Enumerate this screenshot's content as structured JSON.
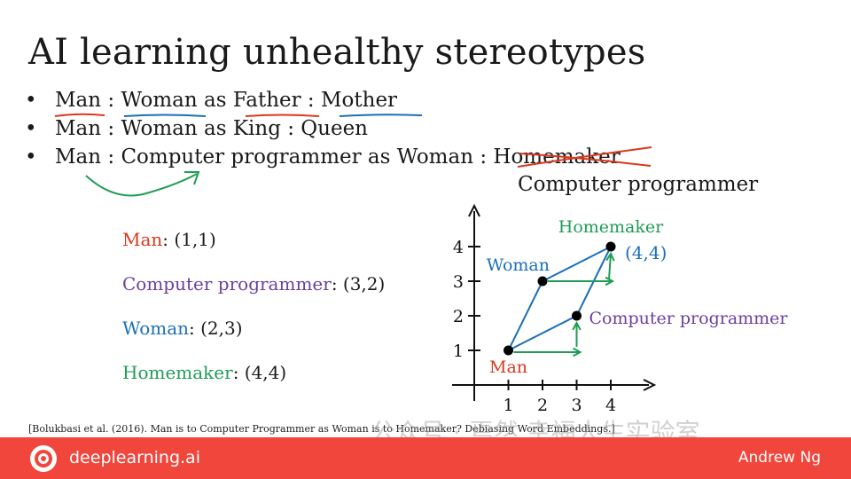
{
  "title": "AI learning unhealthy stereotypes",
  "bullets": [
    {
      "symbol": "•",
      "text": "Man : Woman as Father : Mother"
    },
    {
      "symbol": "•",
      "text": "Man : Woman as King : Queen"
    },
    {
      "symbol": "•",
      "text": "Man : Computer programmer as Woman : Homemaker"
    }
  ],
  "answer": "Computer programmer",
  "legend": [
    {
      "word": "Man",
      "coords": ": (1,1)",
      "color": "#d9381e"
    },
    {
      "word": "Computer programmer",
      "coords": ": (3,2)",
      "color": "#6b3fa0"
    },
    {
      "word": "Woman",
      "coords": ": (2,3)",
      "color": "#1c6fb8"
    },
    {
      "word": "Homemaker",
      "coords": ": (4,4)",
      "color": "#1f9d55"
    }
  ],
  "chart_data": {
    "type": "scatter",
    "x_ticks": [
      "1",
      "2",
      "3",
      "4"
    ],
    "y_ticks": [
      "1",
      "2",
      "3",
      "4"
    ],
    "xlim": [
      0,
      4.9
    ],
    "ylim": [
      0,
      5.1
    ],
    "points": [
      {
        "label": "Man",
        "x": 1,
        "y": 1,
        "color": "#d9381e"
      },
      {
        "label": "Woman",
        "x": 2,
        "y": 3,
        "color": "#1c6fb8"
      },
      {
        "label": "Computer programmer",
        "x": 3,
        "y": 2,
        "color": "#6b3fa0"
      },
      {
        "label": "Homemaker",
        "x": 4,
        "y": 4,
        "color": "#1f9d55"
      }
    ],
    "annotation": "(4,4)"
  },
  "citation": "[Bolukbasi et al. (2016). Man is to Computer Programmer as Woman is to Homemaker? Debiasing Word Embeddings.]",
  "watermark": "公众号 · 焉然 幸福人生实验室",
  "footer": {
    "brand": "deeplearning.ai",
    "author": "Andrew Ng",
    "color": "#f0463c"
  }
}
